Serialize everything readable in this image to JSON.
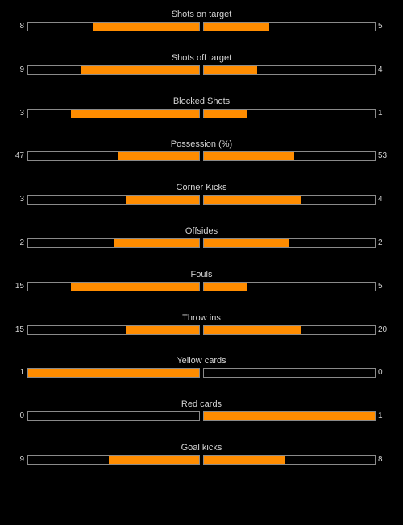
{
  "colors": {
    "background": "#000000",
    "bar_fill": "#ff8c00",
    "bar_border": "#8a8a8a",
    "text": "#d4d4d4"
  },
  "stats": [
    {
      "label": "Shots on target",
      "home": 8,
      "away": 5,
      "home_fill": 0.62,
      "away_fill": 0.38
    },
    {
      "label": "Shots off target",
      "home": 9,
      "away": 4,
      "home_fill": 0.69,
      "away_fill": 0.31
    },
    {
      "label": "Blocked Shots",
      "home": 3,
      "away": 1,
      "home_fill": 0.75,
      "away_fill": 0.25
    },
    {
      "label": "Possession (%)",
      "home": 47,
      "away": 53,
      "home_fill": 0.47,
      "away_fill": 0.53
    },
    {
      "label": "Corner Kicks",
      "home": 3,
      "away": 4,
      "home_fill": 0.43,
      "away_fill": 0.57
    },
    {
      "label": "Offsides",
      "home": 2,
      "away": 2,
      "home_fill": 0.5,
      "away_fill": 0.5
    },
    {
      "label": "Fouls",
      "home": 15,
      "away": 5,
      "home_fill": 0.75,
      "away_fill": 0.25
    },
    {
      "label": "Throw ins",
      "home": 15,
      "away": 20,
      "home_fill": 0.43,
      "away_fill": 0.57
    },
    {
      "label": "Yellow cards",
      "home": 1,
      "away": 0,
      "home_fill": 1,
      "away_fill": 0
    },
    {
      "label": "Red cards",
      "home": 0,
      "away": 1,
      "home_fill": 0,
      "away_fill": 1
    },
    {
      "label": "Goal kicks",
      "home": 9,
      "away": 8,
      "home_fill": 0.53,
      "away_fill": 0.47
    }
  ]
}
